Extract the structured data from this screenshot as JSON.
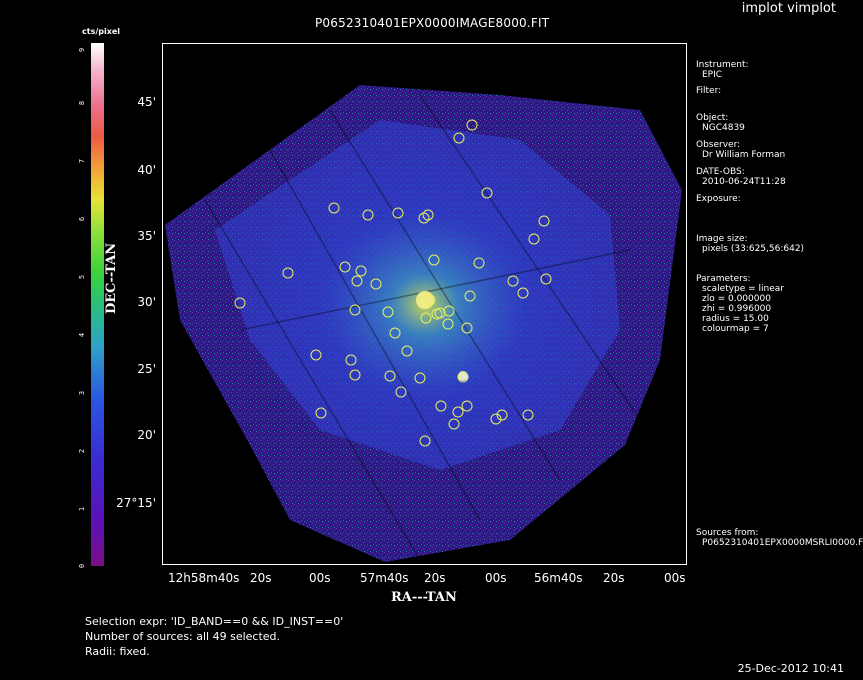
{
  "app_title": "implot vimplot",
  "image_title": "P0652310401EPX0000IMAGE8000.FIT",
  "colorbar": {
    "unit": "cts/pixel",
    "ticks": [
      "0",
      "1",
      "2",
      "3",
      "4",
      "5",
      "6",
      "7",
      "8",
      "9"
    ],
    "colors": [
      "#7a0f86",
      "#2a57e0",
      "#28c07a",
      "#e7e436",
      "#ee5a42",
      "#ffffff"
    ]
  },
  "axes": {
    "y_label": "DEC--TAN",
    "x_label": "RA---TAN",
    "y_ticks": [
      "45'",
      "40'",
      "35'",
      "30'",
      "25'",
      "20'",
      "27°15'"
    ],
    "x_ticks": [
      "12h58m40s",
      "20s",
      "00s",
      "57m40s",
      "20s",
      "00s",
      "56m40s",
      "20s",
      "00s"
    ]
  },
  "info_panel": {
    "instrument_label": "Instrument:",
    "instrument": "EPIC",
    "filter_label": "Filter:",
    "object_label": "Object:",
    "object": "NGC4839",
    "observer_label": "Observer:",
    "observer": "Dr William Forman",
    "date_label": "DATE-OBS:",
    "date": "2010-06-24T11:28",
    "exposure_label": "Exposure:",
    "image_size_label": "Image size:",
    "image_size": "pixels (33:625,56:642)",
    "parameters_label": "Parameters:",
    "parameters": [
      "scaletype = linear",
      "zlo = 0.000000",
      "zhi = 0.996000",
      "radius = 15.00",
      "colourmap = 7"
    ],
    "sources_label": "Sources from:",
    "sources_file": "P0652310401EPX0000MSRLI0000.F"
  },
  "selection": {
    "expr": "Selection expr: 'ID_BAND==0 && ID_INST==0'",
    "count": "Number of sources: all 49 selected.",
    "radii": "Radii: fixed."
  },
  "timestamp": "25-Dec-2012 10:41",
  "source_markers": [
    [
      472,
      125
    ],
    [
      459,
      138
    ],
    [
      487,
      193
    ],
    [
      334,
      208
    ],
    [
      368,
      215
    ],
    [
      398,
      213
    ],
    [
      428,
      215
    ],
    [
      424,
      218
    ],
    [
      544,
      221
    ],
    [
      534,
      239
    ],
    [
      434,
      260
    ],
    [
      479,
      263
    ],
    [
      345,
      267
    ],
    [
      361,
      271
    ],
    [
      288,
      273
    ],
    [
      357,
      281
    ],
    [
      376,
      284
    ],
    [
      513,
      281
    ],
    [
      546,
      279
    ],
    [
      470,
      296
    ],
    [
      523,
      293
    ],
    [
      240,
      303
    ],
    [
      355,
      310
    ],
    [
      388,
      312
    ],
    [
      449,
      311
    ],
    [
      437,
      314
    ],
    [
      448,
      324
    ],
    [
      395,
      333
    ],
    [
      467,
      328
    ],
    [
      407,
      351
    ],
    [
      316,
      355
    ],
    [
      351,
      360
    ],
    [
      355,
      375
    ],
    [
      390,
      376
    ],
    [
      420,
      378
    ],
    [
      463,
      377
    ],
    [
      401,
      392
    ],
    [
      441,
      406
    ],
    [
      467,
      406
    ],
    [
      458,
      412
    ],
    [
      321,
      413
    ],
    [
      502,
      415
    ],
    [
      496,
      419
    ],
    [
      528,
      415
    ],
    [
      454,
      424
    ],
    [
      425,
      441
    ],
    [
      440,
      313
    ],
    [
      430,
      300
    ],
    [
      426,
      318
    ]
  ]
}
